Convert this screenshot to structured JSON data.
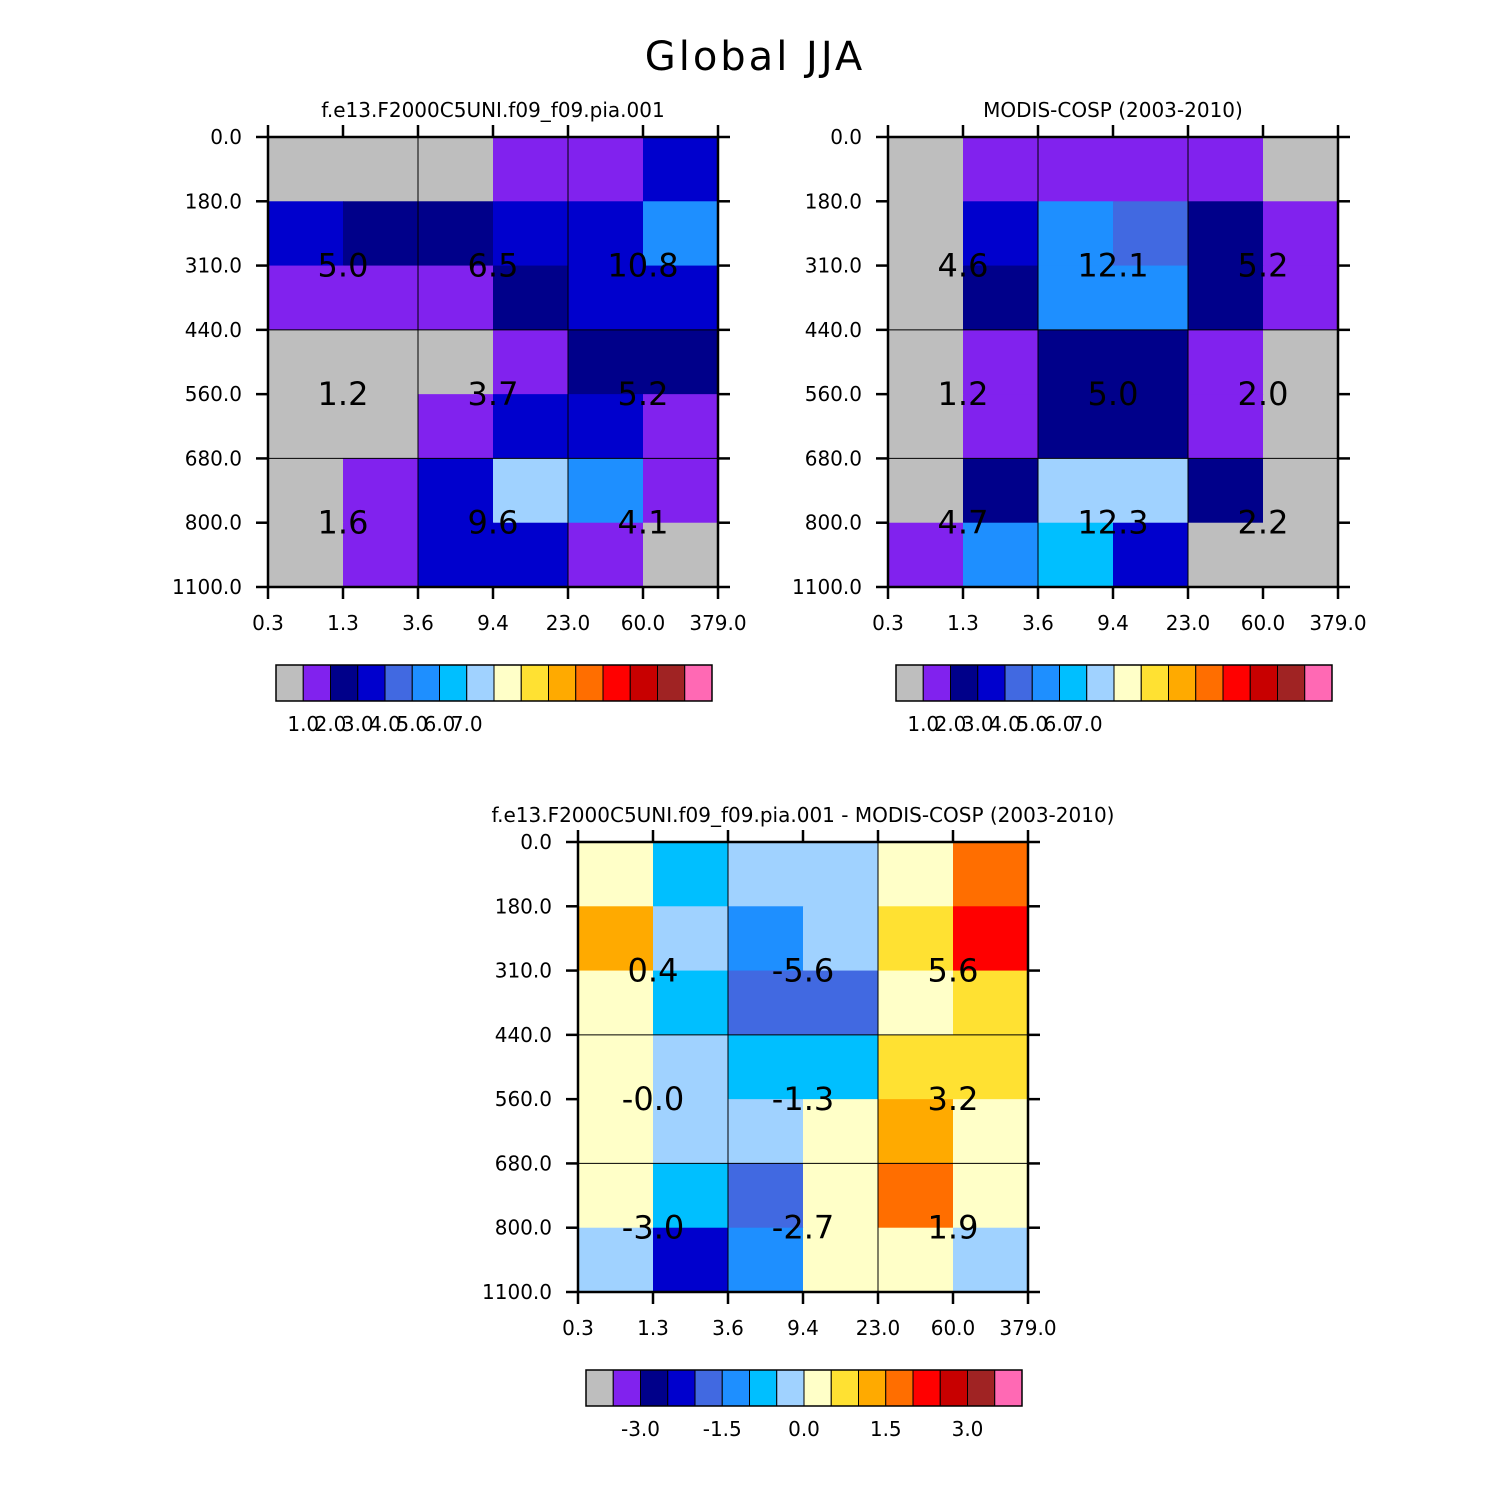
{
  "figure": {
    "title": "Global JJA"
  },
  "palette": [
    "#bebebe",
    "#8122ee",
    "#00008a",
    "#0000cd",
    "#4169e1",
    "#1e8fff",
    "#00bfff",
    "#a0d2ff",
    "#ffffc8",
    "#ffe132",
    "#ffaa00",
    "#ff6e00",
    "#ff0000",
    "#c80000",
    "#a02323",
    "#ff69b4"
  ],
  "chart_data": [
    {
      "type": "heatmap",
      "title": "f.e13.F2000C5UNI.f09_f09.pia.001",
      "x_ticks": [
        "0.3",
        "1.3",
        "3.6",
        "9.4",
        "23.0",
        "60.0",
        "379.0"
      ],
      "y_ticks": [
        "0.0",
        "180.0",
        "310.0",
        "440.0",
        "560.0",
        "680.0",
        "800.0",
        "1100.0"
      ],
      "cells": [
        [
          0,
          0,
          0,
          1,
          1,
          3
        ],
        [
          3,
          2,
          2,
          3,
          3,
          5
        ],
        [
          1,
          1,
          1,
          2,
          3,
          3
        ],
        [
          0,
          0,
          0,
          1,
          2,
          2
        ],
        [
          0,
          0,
          1,
          3,
          3,
          1
        ],
        [
          0,
          1,
          3,
          7,
          5,
          1
        ],
        [
          0,
          1,
          3,
          3,
          1,
          0
        ]
      ],
      "box_values": [
        [
          "5.0",
          "6.5",
          "10.8"
        ],
        [
          "1.2",
          "3.7",
          "5.2"
        ],
        [
          "1.6",
          "9.6",
          "4.1"
        ]
      ],
      "colorbar_labels": [
        "1.0",
        "2.0",
        "3.0",
        "4.0",
        "5.0",
        "6.0",
        "7.0"
      ]
    },
    {
      "type": "heatmap",
      "title": "MODIS-COSP (2003-2010)",
      "x_ticks": [
        "0.3",
        "1.3",
        "3.6",
        "9.4",
        "23.0",
        "60.0",
        "379.0"
      ],
      "y_ticks": [
        "0.0",
        "180.0",
        "310.0",
        "440.0",
        "560.0",
        "680.0",
        "800.0",
        "1100.0"
      ],
      "cells": [
        [
          0,
          1,
          1,
          1,
          1,
          0
        ],
        [
          0,
          3,
          5,
          4,
          2,
          1
        ],
        [
          0,
          2,
          5,
          5,
          2,
          1
        ],
        [
          0,
          1,
          2,
          2,
          1,
          0
        ],
        [
          0,
          1,
          2,
          2,
          1,
          0
        ],
        [
          0,
          2,
          7,
          7,
          2,
          0
        ],
        [
          1,
          5,
          6,
          3,
          0,
          0
        ]
      ],
      "box_values": [
        [
          "4.6",
          "12.1",
          "5.2"
        ],
        [
          "1.2",
          "5.0",
          "2.0"
        ],
        [
          "4.7",
          "12.3",
          "2.2"
        ]
      ],
      "colorbar_labels": [
        "1.0",
        "2.0",
        "3.0",
        "4.0",
        "5.0",
        "6.0",
        "7.0"
      ]
    },
    {
      "type": "heatmap",
      "title": "f.e13.F2000C5UNI.f09_f09.pia.001 - MODIS-COSP (2003-2010)",
      "x_ticks": [
        "0.3",
        "1.3",
        "3.6",
        "9.4",
        "23.0",
        "60.0",
        "379.0"
      ],
      "y_ticks": [
        "0.0",
        "180.0",
        "310.0",
        "440.0",
        "560.0",
        "680.0",
        "800.0",
        "1100.0"
      ],
      "cells": [
        [
          8,
          6,
          7,
          7,
          8,
          11
        ],
        [
          10,
          7,
          5,
          7,
          9,
          12
        ],
        [
          8,
          6,
          4,
          4,
          8,
          9
        ],
        [
          8,
          7,
          6,
          6,
          9,
          9
        ],
        [
          8,
          7,
          7,
          8,
          10,
          8
        ],
        [
          8,
          6,
          4,
          8,
          11,
          8
        ],
        [
          7,
          3,
          5,
          8,
          8,
          7
        ]
      ],
      "box_values": [
        [
          "0.4",
          "-5.6",
          "5.6"
        ],
        [
          "-0.0",
          "-1.3",
          "3.2"
        ],
        [
          "-3.0",
          "-2.7",
          "1.9"
        ]
      ],
      "colorbar_labels": [
        "-3.0",
        "-1.5",
        "0.0",
        "1.5",
        "3.0"
      ]
    }
  ]
}
